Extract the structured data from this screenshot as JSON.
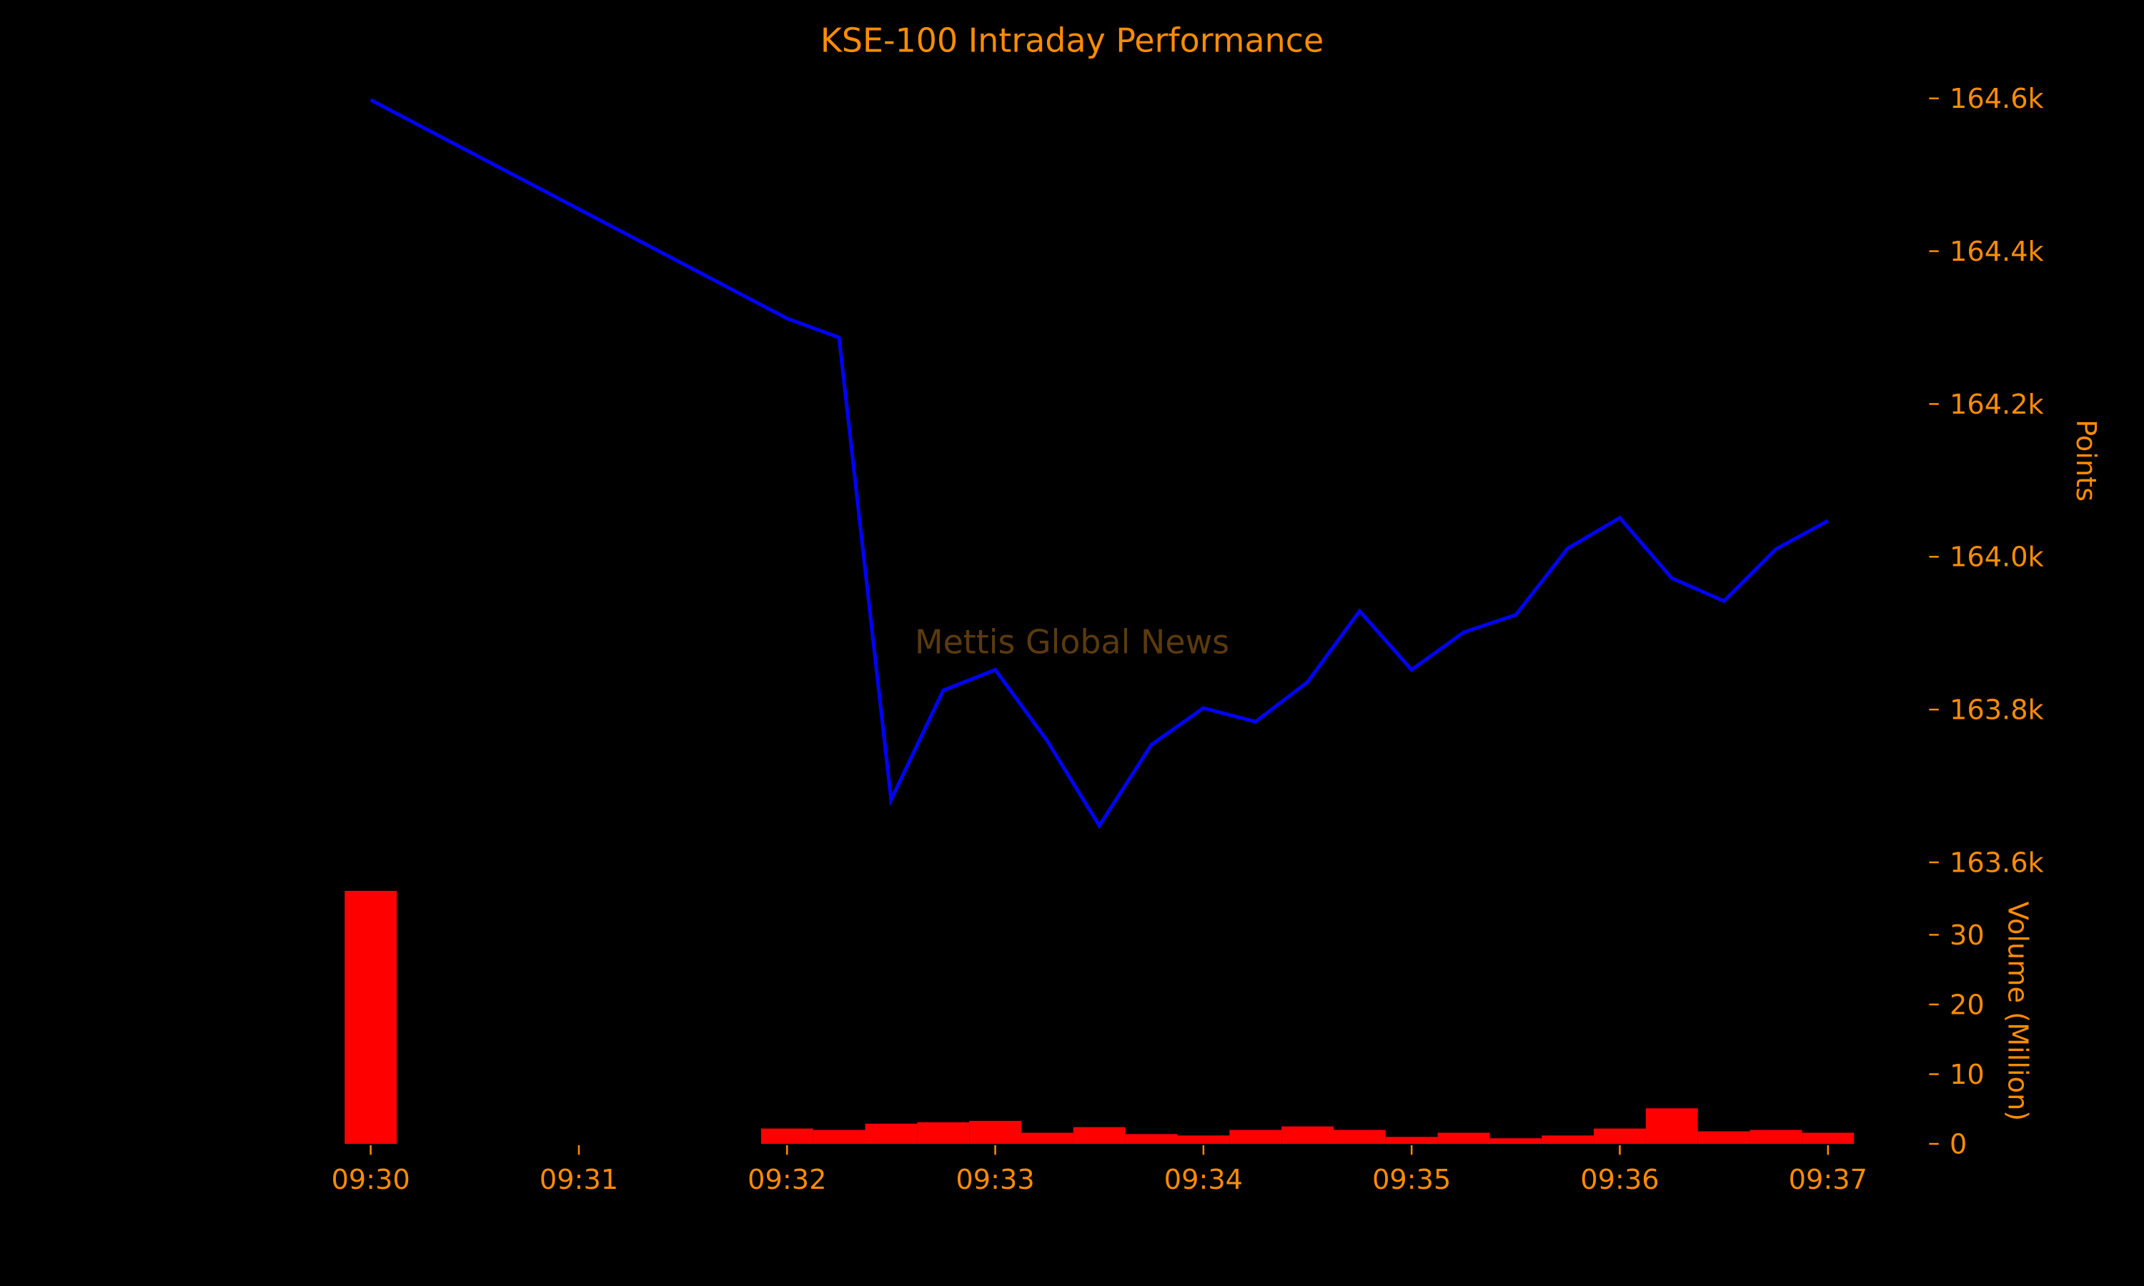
{
  "chart_data": [
    {
      "type": "line",
      "title": "KSE-100 Intraday Performance",
      "watermark": "Mettis Global News",
      "ylabel": "Points",
      "ylim": [
        163600,
        164600
      ],
      "yticks": [
        163600,
        163800,
        164000,
        164200,
        164400,
        164600
      ],
      "ytick_labels": [
        "163.6k",
        "163.8k",
        "164.0k",
        "164.2k",
        "164.4k",
        "164.6k"
      ],
      "y_axis_side": "right",
      "grid": false,
      "color": "#0000ff",
      "x": [
        "09:30:00",
        "09:32:00",
        "09:32:15",
        "09:32:30",
        "09:32:45",
        "09:33:00",
        "09:33:15",
        "09:33:30",
        "09:33:45",
        "09:34:00",
        "09:34:15",
        "09:34:30",
        "09:34:45",
        "09:35:00",
        "09:35:15",
        "09:35:30",
        "09:35:45",
        "09:36:00",
        "09:36:15",
        "09:36:30",
        "09:36:45",
        "09:37:00"
      ],
      "values": [
        164598,
        164312,
        164287,
        163682,
        163825,
        163852,
        163759,
        163648,
        163754,
        163802,
        163784,
        163836,
        163929,
        163852,
        163901,
        163924,
        164011,
        164051,
        163972,
        163942,
        164010,
        164047
      ]
    },
    {
      "type": "bar",
      "ylabel": "Volume (Million)",
      "ylim": [
        0,
        36
      ],
      "yticks": [
        0,
        10,
        20,
        30
      ],
      "ytick_labels": [
        "0",
        "10",
        "20",
        "30"
      ],
      "y_axis_side": "right",
      "color": "#ff0000",
      "x": [
        "09:30:00",
        "09:32:00",
        "09:32:15",
        "09:32:30",
        "09:32:45",
        "09:33:00",
        "09:33:15",
        "09:33:30",
        "09:33:45",
        "09:34:00",
        "09:34:15",
        "09:34:30",
        "09:34:45",
        "09:35:00",
        "09:35:15",
        "09:35:30",
        "09:35:45",
        "09:36:00",
        "09:36:15",
        "09:36:30",
        "09:36:45",
        "09:37:00"
      ],
      "values": [
        36.3,
        2.2,
        2.0,
        2.9,
        3.1,
        3.3,
        1.6,
        2.4,
        1.4,
        1.2,
        2.0,
        2.5,
        2.0,
        1.0,
        1.6,
        0.8,
        1.2,
        2.2,
        5.1,
        1.8,
        2.0,
        1.6
      ]
    }
  ],
  "xaxis": {
    "ticks": [
      "09:30",
      "09:31",
      "09:32",
      "09:33",
      "09:34",
      "09:35",
      "09:36",
      "09:37"
    ]
  },
  "colors": {
    "text": "#ff8c00",
    "watermark": "#5c3a0e",
    "background": "#000000"
  }
}
